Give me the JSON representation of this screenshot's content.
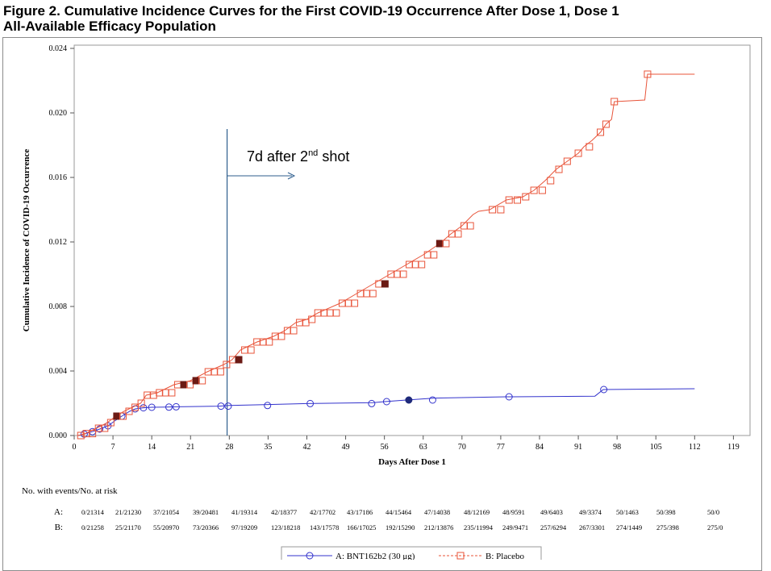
{
  "figure": {
    "title_line1": "Figure 2. Cumulative Incidence Curves for the First COVID-19 Occurrence After Dose 1, Dose 1",
    "title_line2": "All-Available Efficacy Population"
  },
  "chart_data": {
    "type": "line",
    "xlabel": "Days After Dose 1",
    "ylabel": "Cumulative Incidence of COVID-19 Occurrence",
    "xlim": [
      0,
      122
    ],
    "ylim": [
      0,
      0.0242
    ],
    "x_ticks": [
      0,
      7,
      14,
      21,
      28,
      35,
      42,
      49,
      56,
      63,
      70,
      77,
      84,
      91,
      98,
      105,
      112,
      119
    ],
    "y_ticks": [
      "0.000",
      "0.004",
      "0.008",
      "0.012",
      "0.016",
      "0.020",
      "0.024"
    ],
    "grid": false,
    "legend_position": "bottom-center",
    "annotation": {
      "x": 27.6,
      "text": "7d after 2",
      "superscript": "nd",
      "text_after": " shot",
      "color": "#2e5e8e"
    },
    "series": [
      {
        "name": "A: BNT162b2 (30 μg)",
        "color": "#3333cc",
        "marker": "circle",
        "points": [
          [
            0.7,
            0
          ],
          [
            1.8,
            9e-05
          ],
          [
            3.3,
            0.00024
          ],
          [
            4.6,
            0.0004
          ],
          [
            6.1,
            0.0006
          ],
          [
            7.3,
            0.0009
          ],
          [
            8.6,
            0.0012
          ],
          [
            10,
            0.0015
          ],
          [
            11,
            0.00165
          ],
          [
            12.5,
            0.00172
          ],
          [
            14,
            0.00175
          ],
          [
            16.5,
            0.00176
          ],
          [
            18.4,
            0.00178
          ],
          [
            20,
            0.00179
          ],
          [
            26,
            0.00182
          ],
          [
            28,
            0.00186
          ],
          [
            35,
            0.00192
          ],
          [
            42,
            0.00198
          ],
          [
            54,
            0.00204
          ],
          [
            56,
            0.0021
          ],
          [
            60,
            0.0022
          ],
          [
            65,
            0.00232
          ],
          [
            78,
            0.0024
          ],
          [
            94,
            0.00244
          ],
          [
            95.5,
            0.00285
          ],
          [
            112,
            0.0029
          ]
        ],
        "markers_x": [
          1.8,
          3.3,
          4.6,
          6.1,
          8.6,
          11,
          12.5,
          14,
          17.1,
          18.4,
          26.5,
          27.8,
          34.9,
          42.6,
          53.7,
          56.4,
          60.4,
          64.7,
          78.5,
          95.6
        ],
        "filled_markers_x": [
          60.4
        ]
      },
      {
        "name": "B: Placebo",
        "color": "#e8543a",
        "marker": "square",
        "points": [
          [
            0.7,
            0
          ],
          [
            2,
            0.00012
          ],
          [
            4,
            0.00045
          ],
          [
            6,
            0.0008
          ],
          [
            7.5,
            0.0012
          ],
          [
            9,
            0.0015
          ],
          [
            10.5,
            0.00175
          ],
          [
            12,
            0.002
          ],
          [
            13,
            0.0025
          ],
          [
            15,
            0.00265
          ],
          [
            18,
            0.00315
          ],
          [
            21,
            0.0034
          ],
          [
            24,
            0.00395
          ],
          [
            27,
            0.0044
          ],
          [
            28.5,
            0.0047
          ],
          [
            30,
            0.0053
          ],
          [
            33,
            0.0058
          ],
          [
            36,
            0.00615
          ],
          [
            38,
            0.0065
          ],
          [
            40,
            0.007
          ],
          [
            42,
            0.0072
          ],
          [
            44,
            0.0076
          ],
          [
            48,
            0.0082
          ],
          [
            51,
            0.0088
          ],
          [
            54,
            0.0094
          ],
          [
            57,
            0.01
          ],
          [
            60,
            0.0106
          ],
          [
            63,
            0.0112
          ],
          [
            66,
            0.0119
          ],
          [
            68,
            0.0125
          ],
          [
            70,
            0.013
          ],
          [
            72,
            0.0137
          ],
          [
            73,
            0.0139
          ],
          [
            75,
            0.014
          ],
          [
            78,
            0.0146
          ],
          [
            81,
            0.0148
          ],
          [
            83,
            0.0152
          ],
          [
            85,
            0.0158
          ],
          [
            87,
            0.0165
          ],
          [
            89,
            0.017
          ],
          [
            91,
            0.0175
          ],
          [
            92,
            0.0179
          ],
          [
            93.5,
            0.0183
          ],
          [
            95,
            0.0188
          ],
          [
            96,
            0.0193
          ],
          [
            97,
            0.0196
          ],
          [
            97.5,
            0.0207
          ],
          [
            103,
            0.0208
          ],
          [
            103.5,
            0.0224
          ],
          [
            112,
            0.0224
          ]
        ],
        "markers_x": [
          1.2,
          2.2,
          3.3,
          4.4,
          5.5,
          6.6,
          7.7,
          8.8,
          9.9,
          11,
          12.1,
          13.2,
          14.3,
          15.4,
          16.5,
          17.6,
          18.7,
          19.8,
          20.9,
          22,
          23.1,
          24.2,
          25.3,
          26.4,
          27.5,
          28.6,
          29.7,
          30.8,
          31.9,
          33,
          34.1,
          35.2,
          36.3,
          37.4,
          38.5,
          39.6,
          40.7,
          41.8,
          42.9,
          44,
          45.1,
          46.2,
          47.3,
          48.4,
          49.5,
          50.6,
          51.7,
          52.8,
          53.9,
          55,
          56.1,
          57.2,
          58.3,
          59.4,
          60.5,
          61.6,
          62.7,
          63.8,
          64.9,
          66,
          67.1,
          68.2,
          69.3,
          70.4,
          71.5,
          75.5,
          77,
          78.5,
          80,
          81.5,
          83,
          84.5,
          86,
          87.5,
          89,
          91,
          93,
          95,
          96,
          97.5,
          103.5
        ],
        "filled_markers_x": [
          7.7,
          19.8,
          22,
          29.7,
          56.1,
          66
        ]
      }
    ]
  },
  "risk_table": {
    "title": "No. with events/No. at risk",
    "rows": [
      {
        "label": "A:",
        "values": [
          "0/21314",
          "21/21230",
          "37/21054",
          "39/20481",
          "41/19314",
          "42/18377",
          "42/17702",
          "43/17186",
          "44/15464",
          "47/14038",
          "48/12169",
          "48/9591",
          "49/6403",
          "49/3374",
          "50/1463",
          "50/398",
          "50/0"
        ]
      },
      {
        "label": "B:",
        "values": [
          "0/21258",
          "25/21170",
          "55/20970",
          "73/20366",
          "97/19209",
          "123/18218",
          "143/17578",
          "166/17025",
          "192/15290",
          "212/13876",
          "235/11994",
          "249/9471",
          "257/6294",
          "267/3301",
          "274/1449",
          "275/398",
          "275/0"
        ]
      }
    ]
  }
}
